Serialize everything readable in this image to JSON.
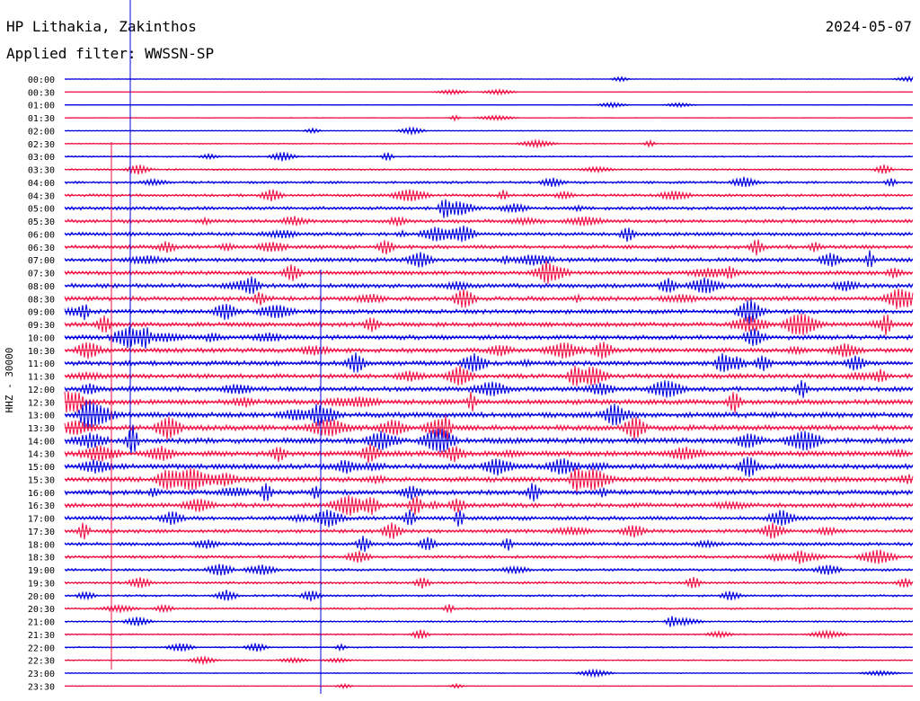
{
  "header": {
    "station": "HP Lithakia, Zakinthos",
    "filter": "Applied filter: WWSSN-SP",
    "date": "2024-05-07"
  },
  "chart_data": {
    "type": "line",
    "title": "HP Lithakia, Zakinthos",
    "ylabel": "HHZ - 30000",
    "categories": [
      "00:00",
      "00:30",
      "01:00",
      "01:30",
      "02:00",
      "02:30",
      "03:00",
      "03:30",
      "04:00",
      "04:30",
      "05:00",
      "05:30",
      "06:00",
      "06:30",
      "07:00",
      "07:30",
      "08:00",
      "08:30",
      "09:00",
      "09:30",
      "10:00",
      "10:30",
      "11:00",
      "11:30",
      "12:00",
      "12:30",
      "13:00",
      "13:30",
      "14:00",
      "14:30",
      "15:00",
      "15:30",
      "16:00",
      "16:30",
      "17:00",
      "17:30",
      "18:00",
      "18:30",
      "19:00",
      "19:30",
      "20:00",
      "20:30",
      "21:00",
      "21:30",
      "22:00",
      "22:30",
      "23:00",
      "23:30"
    ],
    "noise_level": [
      0.3,
      0.3,
      0.4,
      0.4,
      0.5,
      0.6,
      0.8,
      1.0,
      1.4,
      1.6,
      1.9,
      2.0,
      2.0,
      2.2,
      2.3,
      2.3,
      2.4,
      2.5,
      2.4,
      2.5,
      2.6,
      2.6,
      2.6,
      2.6,
      2.7,
      2.8,
      2.9,
      3.0,
      3.0,
      3.0,
      2.9,
      2.8,
      2.7,
      2.5,
      2.3,
      2.1,
      1.9,
      1.7,
      1.5,
      1.4,
      1.2,
      1.1,
      1.0,
      0.9,
      0.8,
      0.7,
      0.5,
      0.4
    ],
    "colors": {
      "even_rows": "#0000dd",
      "odd_rows": "#ee1144",
      "axis": "#000000"
    }
  }
}
